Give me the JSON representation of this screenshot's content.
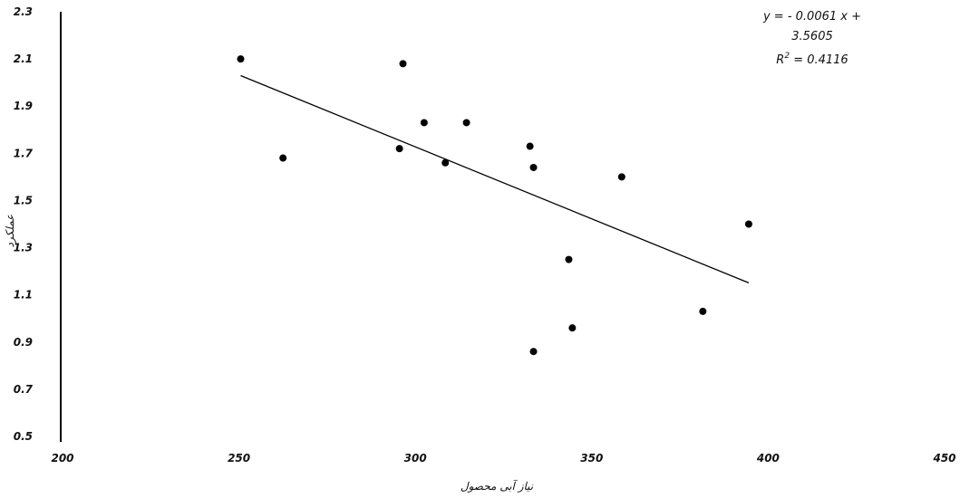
{
  "chart_data": {
    "type": "scatter",
    "title": "",
    "xlabel": "نیاز آبی محصول",
    "ylabel": "عملکرد",
    "xlim": [
      200,
      450
    ],
    "ylim": [
      0.5,
      2.3
    ],
    "x_ticks": [
      "200",
      "250",
      "300",
      "350",
      "400",
      "450"
    ],
    "y_ticks": [
      "0.5",
      "0.7",
      "0.9",
      "1.1",
      "1.3",
      "1.5",
      "1.7",
      "1.9",
      "2.1",
      "2.3"
    ],
    "grid": false,
    "legend": "none",
    "colors": {
      "points": "#000000",
      "trendline": "#000000",
      "axis": "#000000"
    },
    "series": [
      {
        "x": [
          251,
          263,
          296,
          297,
          303,
          309,
          315,
          333,
          334,
          334,
          344,
          345,
          359,
          382,
          395
        ],
        "y": [
          2.1,
          1.68,
          1.72,
          2.08,
          1.83,
          1.66,
          1.83,
          1.73,
          1.64,
          0.86,
          1.25,
          0.96,
          1.6,
          1.03,
          1.4
        ]
      }
    ],
    "trendline": {
      "slope": -0.0061,
      "intercept": 3.5605,
      "x_range": [
        251,
        395
      ]
    },
    "annotation": {
      "line1": "y = - 0.0061 x +",
      "line2": "3.5605",
      "line3_prefix": "R",
      "line3_sup": "2",
      "line3_suffix": " = 0.4116"
    }
  }
}
